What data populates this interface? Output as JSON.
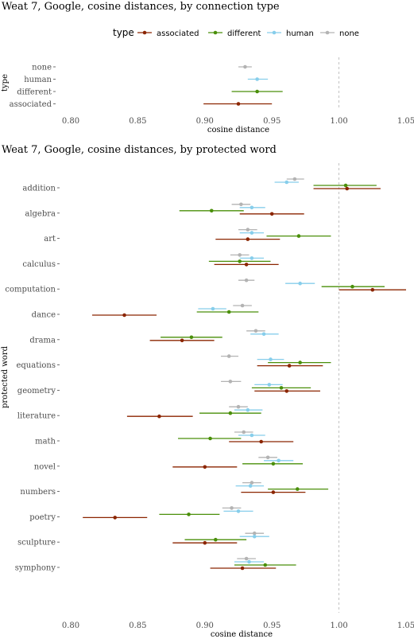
{
  "chart_data": [
    {
      "type": "scatter",
      "title": "Weat 7, Google,  cosine distances, by connection type",
      "xlabel": "cosine distance",
      "ylabel": "type",
      "xlim": [
        0.79,
        1.05
      ],
      "xticks": [
        "0.80",
        "0.85",
        "0.90",
        "0.95",
        "1.00",
        "1.05"
      ],
      "reference_line": 1.0,
      "legend": {
        "title": "type",
        "position": "top",
        "entries": [
          "associated",
          "different",
          "human",
          "none"
        ]
      },
      "categories": [
        "none",
        "human",
        "different",
        "associated"
      ],
      "series": [
        {
          "name": "none",
          "color": "#b3b3b3",
          "points": [
            {
              "cat": "none",
              "x": 0.93,
              "lo": 0.925,
              "hi": 0.935
            }
          ]
        },
        {
          "name": "human",
          "color": "#87ceeb",
          "points": [
            {
              "cat": "human",
              "x": 0.939,
              "lo": 0.932,
              "hi": 0.947
            }
          ]
        },
        {
          "name": "different",
          "color": "#4a8f0a",
          "points": [
            {
              "cat": "different",
              "x": 0.939,
              "lo": 0.92,
              "hi": 0.958
            }
          ]
        },
        {
          "name": "associated",
          "color": "#8b2500",
          "points": [
            {
              "cat": "associated",
              "x": 0.925,
              "lo": 0.899,
              "hi": 0.95
            }
          ]
        }
      ]
    },
    {
      "type": "scatter",
      "title": "Weat 7, Google, cosine distances, by protected word",
      "xlabel": "cosine distance",
      "ylabel": "protected word",
      "xlim": [
        0.79,
        1.05
      ],
      "xticks": [
        "0.80",
        "0.85",
        "0.90",
        "0.95",
        "1.00",
        "1.05"
      ],
      "reference_line": 1.0,
      "categories": [
        "addition",
        "algebra",
        "art",
        "calculus",
        "computation",
        "dance",
        "drama",
        "equations",
        "geometry",
        "literature",
        "math",
        "novel",
        "numbers",
        "poetry",
        "sculpture",
        "symphony"
      ],
      "series": [
        {
          "name": "none",
          "color": "#b3b3b3",
          "points": [
            {
              "cat": "addition",
              "x": 0.967,
              "lo": 0.961,
              "hi": 0.974
            },
            {
              "cat": "algebra",
              "x": 0.927,
              "lo": 0.92,
              "hi": 0.934
            },
            {
              "cat": "art",
              "x": 0.932,
              "lo": 0.925,
              "hi": 0.939
            },
            {
              "cat": "calculus",
              "x": 0.926,
              "lo": 0.919,
              "hi": 0.933
            },
            {
              "cat": "computation",
              "x": 0.931,
              "lo": 0.925,
              "hi": 0.937
            },
            {
              "cat": "dance",
              "x": 0.928,
              "lo": 0.921,
              "hi": 0.935
            },
            {
              "cat": "drama",
              "x": 0.938,
              "lo": 0.931,
              "hi": 0.945
            },
            {
              "cat": "equations",
              "x": 0.918,
              "lo": 0.912,
              "hi": 0.925
            },
            {
              "cat": "geometry",
              "x": 0.919,
              "lo": 0.912,
              "hi": 0.927
            },
            {
              "cat": "literature",
              "x": 0.925,
              "lo": 0.918,
              "hi": 0.932
            },
            {
              "cat": "math",
              "x": 0.929,
              "lo": 0.922,
              "hi": 0.936
            },
            {
              "cat": "novel",
              "x": 0.947,
              "lo": 0.94,
              "hi": 0.954
            },
            {
              "cat": "numbers",
              "x": 0.935,
              "lo": 0.928,
              "hi": 0.942
            },
            {
              "cat": "poetry",
              "x": 0.92,
              "lo": 0.913,
              "hi": 0.927
            },
            {
              "cat": "sculpture",
              "x": 0.937,
              "lo": 0.93,
              "hi": 0.944
            },
            {
              "cat": "symphony",
              "x": 0.931,
              "lo": 0.924,
              "hi": 0.938
            }
          ]
        },
        {
          "name": "human",
          "color": "#87ceeb",
          "points": [
            {
              "cat": "addition",
              "x": 0.961,
              "lo": 0.952,
              "hi": 0.97
            },
            {
              "cat": "algebra",
              "x": 0.935,
              "lo": 0.926,
              "hi": 0.945
            },
            {
              "cat": "art",
              "x": 0.935,
              "lo": 0.926,
              "hi": 0.944
            },
            {
              "cat": "calculus",
              "x": 0.935,
              "lo": 0.926,
              "hi": 0.944
            },
            {
              "cat": "computation",
              "x": 0.971,
              "lo": 0.96,
              "hi": 0.982
            },
            {
              "cat": "dance",
              "x": 0.906,
              "lo": 0.895,
              "hi": 0.916
            },
            {
              "cat": "drama",
              "x": 0.944,
              "lo": 0.934,
              "hi": 0.955
            },
            {
              "cat": "equations",
              "x": 0.949,
              "lo": 0.939,
              "hi": 0.959
            },
            {
              "cat": "geometry",
              "x": 0.948,
              "lo": 0.937,
              "hi": 0.958
            },
            {
              "cat": "literature",
              "x": 0.932,
              "lo": 0.922,
              "hi": 0.943
            },
            {
              "cat": "math",
              "x": 0.935,
              "lo": 0.925,
              "hi": 0.945
            },
            {
              "cat": "novel",
              "x": 0.955,
              "lo": 0.944,
              "hi": 0.966
            },
            {
              "cat": "numbers",
              "x": 0.934,
              "lo": 0.923,
              "hi": 0.944
            },
            {
              "cat": "poetry",
              "x": 0.925,
              "lo": 0.914,
              "hi": 0.936
            },
            {
              "cat": "sculpture",
              "x": 0.937,
              "lo": 0.926,
              "hi": 0.948
            },
            {
              "cat": "symphony",
              "x": 0.933,
              "lo": 0.922,
              "hi": 0.944
            }
          ]
        },
        {
          "name": "different",
          "color": "#4a8f0a",
          "points": [
            {
              "cat": "addition",
              "x": 1.005,
              "lo": 0.981,
              "hi": 1.028
            },
            {
              "cat": "algebra",
              "x": 0.905,
              "lo": 0.881,
              "hi": 0.929
            },
            {
              "cat": "art",
              "x": 0.97,
              "lo": 0.946,
              "hi": 0.994
            },
            {
              "cat": "calculus",
              "x": 0.926,
              "lo": 0.903,
              "hi": 0.949
            },
            {
              "cat": "computation",
              "x": 1.01,
              "lo": 0.987,
              "hi": 1.034
            },
            {
              "cat": "dance",
              "x": 0.918,
              "lo": 0.894,
              "hi": 0.94
            },
            {
              "cat": "drama",
              "x": 0.89,
              "lo": 0.867,
              "hi": 0.913
            },
            {
              "cat": "equations",
              "x": 0.971,
              "lo": 0.947,
              "hi": 0.994
            },
            {
              "cat": "geometry",
              "x": 0.957,
              "lo": 0.935,
              "hi": 0.979
            },
            {
              "cat": "literature",
              "x": 0.919,
              "lo": 0.896,
              "hi": 0.942
            },
            {
              "cat": "math",
              "x": 0.904,
              "lo": 0.88,
              "hi": 0.927
            },
            {
              "cat": "novel",
              "x": 0.951,
              "lo": 0.928,
              "hi": 0.973
            },
            {
              "cat": "numbers",
              "x": 0.969,
              "lo": 0.947,
              "hi": 0.992
            },
            {
              "cat": "poetry",
              "x": 0.888,
              "lo": 0.866,
              "hi": 0.911
            },
            {
              "cat": "sculpture",
              "x": 0.908,
              "lo": 0.885,
              "hi": 0.931
            },
            {
              "cat": "symphony",
              "x": 0.945,
              "lo": 0.922,
              "hi": 0.968
            }
          ]
        },
        {
          "name": "associated",
          "color": "#8b2500",
          "points": [
            {
              "cat": "addition",
              "x": 1.006,
              "lo": 0.981,
              "hi": 1.031
            },
            {
              "cat": "algebra",
              "x": 0.95,
              "lo": 0.926,
              "hi": 0.974
            },
            {
              "cat": "art",
              "x": 0.932,
              "lo": 0.908,
              "hi": 0.956
            },
            {
              "cat": "calculus",
              "x": 0.931,
              "lo": 0.907,
              "hi": 0.955
            },
            {
              "cat": "computation",
              "x": 1.025,
              "lo": 1.0,
              "hi": 1.05
            },
            {
              "cat": "dance",
              "x": 0.84,
              "lo": 0.816,
              "hi": 0.864
            },
            {
              "cat": "drama",
              "x": 0.883,
              "lo": 0.859,
              "hi": 0.907
            },
            {
              "cat": "equations",
              "x": 0.963,
              "lo": 0.939,
              "hi": 0.988
            },
            {
              "cat": "geometry",
              "x": 0.961,
              "lo": 0.937,
              "hi": 0.986
            },
            {
              "cat": "literature",
              "x": 0.866,
              "lo": 0.842,
              "hi": 0.891
            },
            {
              "cat": "math",
              "x": 0.942,
              "lo": 0.918,
              "hi": 0.966
            },
            {
              "cat": "novel",
              "x": 0.9,
              "lo": 0.876,
              "hi": 0.924
            },
            {
              "cat": "numbers",
              "x": 0.951,
              "lo": 0.927,
              "hi": 0.975
            },
            {
              "cat": "poetry",
              "x": 0.833,
              "lo": 0.809,
              "hi": 0.857
            },
            {
              "cat": "sculpture",
              "x": 0.9,
              "lo": 0.876,
              "hi": 0.924
            },
            {
              "cat": "symphony",
              "x": 0.928,
              "lo": 0.904,
              "hi": 0.953
            }
          ]
        }
      ]
    }
  ]
}
